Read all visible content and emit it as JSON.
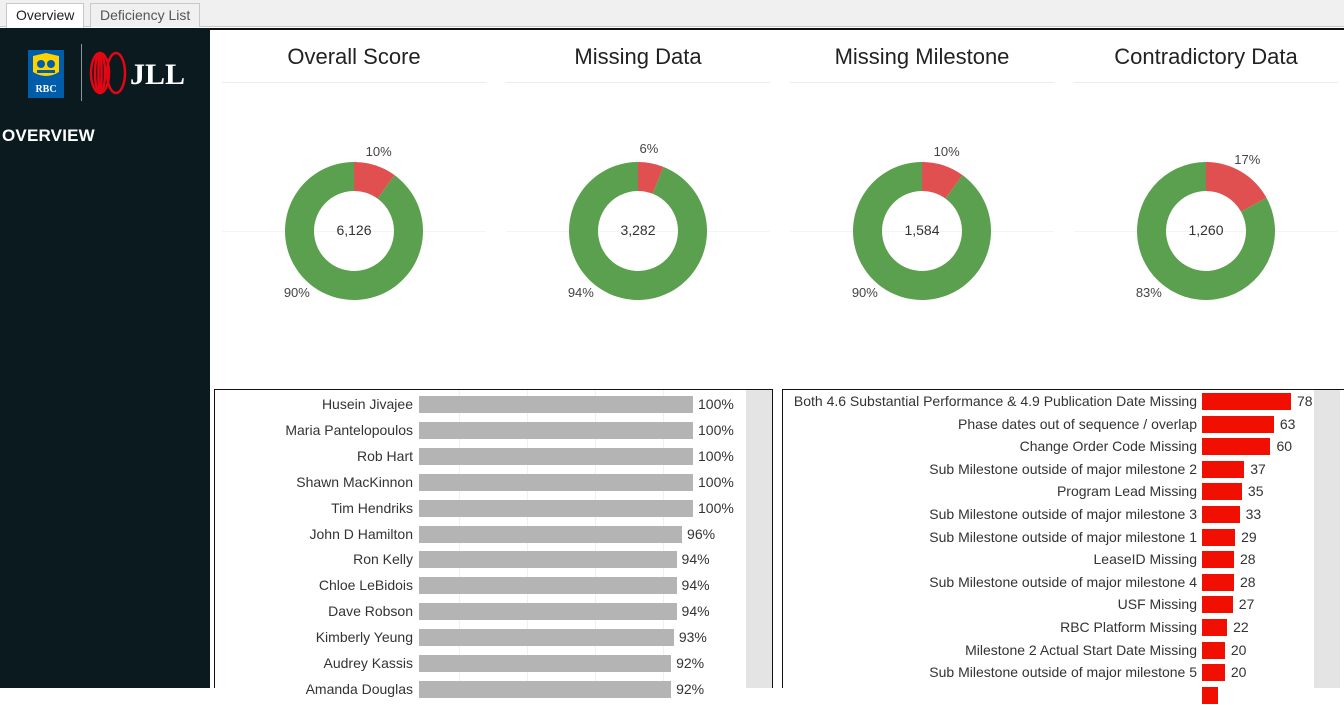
{
  "tabs": [
    {
      "label": "Overview",
      "active": true
    },
    {
      "label": "Deficiency List",
      "active": false
    }
  ],
  "sidebar": {
    "logo_rbc_text": "RBC",
    "logo_jll_text": "JLL",
    "nav_label": "OVERVIEW"
  },
  "colors": {
    "good": "#5ba04e",
    "bad": "#e05050",
    "sidebar_bg": "#0b1a1f",
    "bar_grey": "#b4b4b4",
    "bar_red": "#f00f00"
  },
  "kpis": [
    {
      "title": "Overall Score",
      "total": "6,126",
      "good_pct": 90,
      "bad_pct": 10,
      "good_label": "90%",
      "bad_label": "10%"
    },
    {
      "title": "Missing Data",
      "total": "3,282",
      "good_pct": 94,
      "bad_pct": 6,
      "good_label": "94%",
      "bad_label": "6%"
    },
    {
      "title": "Missing Milestone",
      "total": "1,584",
      "good_pct": 90,
      "bad_pct": 10,
      "good_label": "90%",
      "bad_label": "10%"
    },
    {
      "title": "Contradictory Data",
      "total": "1,260",
      "good_pct": 83,
      "bad_pct": 17,
      "good_label": "83%",
      "bad_label": "17%"
    }
  ],
  "people": [
    {
      "name": "Husein Jivajee",
      "value": 100,
      "label": "100%"
    },
    {
      "name": "Maria Pantelopoulos",
      "value": 100,
      "label": "100%"
    },
    {
      "name": "Rob Hart",
      "value": 100,
      "label": "100%"
    },
    {
      "name": "Shawn MacKinnon",
      "value": 100,
      "label": "100%"
    },
    {
      "name": "Tim Hendriks",
      "value": 100,
      "label": "100%"
    },
    {
      "name": "John D Hamilton",
      "value": 96,
      "label": "96%"
    },
    {
      "name": "Ron Kelly",
      "value": 94,
      "label": "94%"
    },
    {
      "name": "Chloe LeBidois",
      "value": 94,
      "label": "94%"
    },
    {
      "name": "Dave Robson",
      "value": 94,
      "label": "94%"
    },
    {
      "name": "Kimberly Yeung",
      "value": 93,
      "label": "93%"
    },
    {
      "name": "Audrey Kassis",
      "value": 92,
      "label": "92%"
    },
    {
      "name": "Amanda Douglas",
      "value": 92,
      "label": "92%"
    }
  ],
  "deficiencies": [
    {
      "name": "Both 4.6 Substantial Performance & 4.9 Publication Date Missing",
      "value": 78,
      "label": "78"
    },
    {
      "name": "Phase dates out of sequence / overlap",
      "value": 63,
      "label": "63"
    },
    {
      "name": "Change Order Code Missing",
      "value": 60,
      "label": "60"
    },
    {
      "name": "Sub Milestone outside of major milestone 2",
      "value": 37,
      "label": "37"
    },
    {
      "name": "Program Lead Missing",
      "value": 35,
      "label": "35"
    },
    {
      "name": "Sub Milestone outside of major milestone 3",
      "value": 33,
      "label": "33"
    },
    {
      "name": "Sub Milestone outside of major milestone 1",
      "value": 29,
      "label": "29"
    },
    {
      "name": "LeaseID Missing",
      "value": 28,
      "label": "28"
    },
    {
      "name": "Sub Milestone outside of major milestone 4",
      "value": 28,
      "label": "28"
    },
    {
      "name": "USF Missing",
      "value": 27,
      "label": "27"
    },
    {
      "name": "RBC Platform Missing",
      "value": 22,
      "label": "22"
    },
    {
      "name": "Milestone 2 Actual Start Date Missing",
      "value": 20,
      "label": "20"
    },
    {
      "name": "Sub Milestone outside of major milestone 5",
      "value": 20,
      "label": "20"
    },
    {
      "name": "",
      "value": 14,
      "label": ""
    }
  ]
}
